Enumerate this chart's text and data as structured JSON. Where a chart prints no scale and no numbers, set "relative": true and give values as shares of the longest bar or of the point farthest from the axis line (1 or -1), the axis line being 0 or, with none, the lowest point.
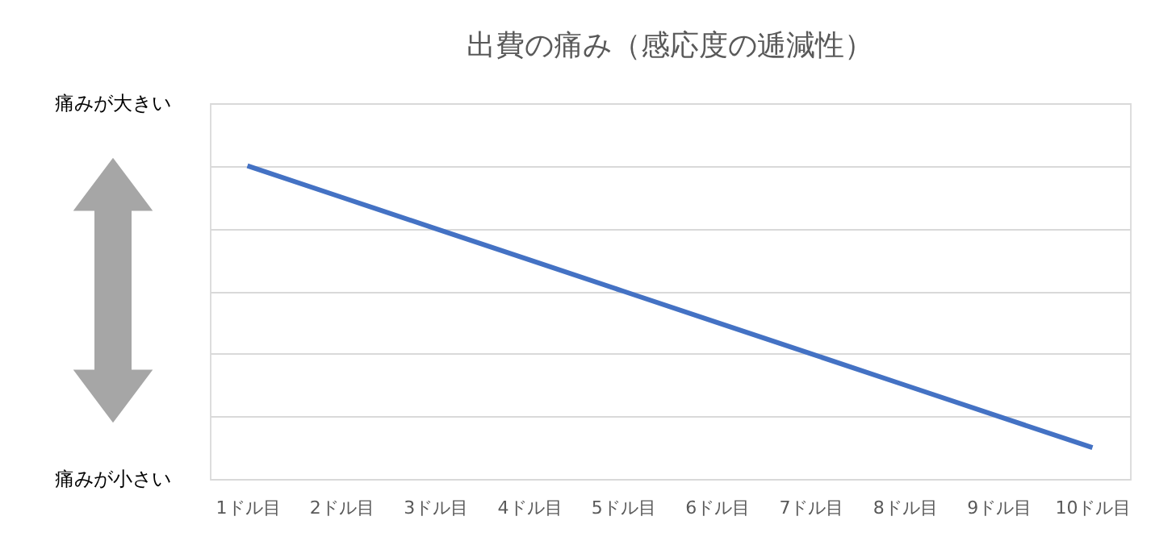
{
  "chart_data": {
    "type": "line",
    "title": "出費の痛み（感応度の逓減性）",
    "categories": [
      "1ドル目",
      "2ドル目",
      "3ドル目",
      "4ドル目",
      "5ドル目",
      "6ドル目",
      "7ドル目",
      "8ドル目",
      "9ドル目",
      "10ドル目"
    ],
    "series": [
      {
        "color": "#4472c4",
        "values": [
          1.0,
          0.9,
          0.8,
          0.7,
          0.6,
          0.5,
          0.4,
          0.3,
          0.2,
          0.1
        ]
      }
    ],
    "relative": true,
    "grid": "y",
    "marker": "none",
    "line_style": "solid",
    "annotations": [
      "痛みが大きい",
      "痛みが小さい"
    ]
  }
}
